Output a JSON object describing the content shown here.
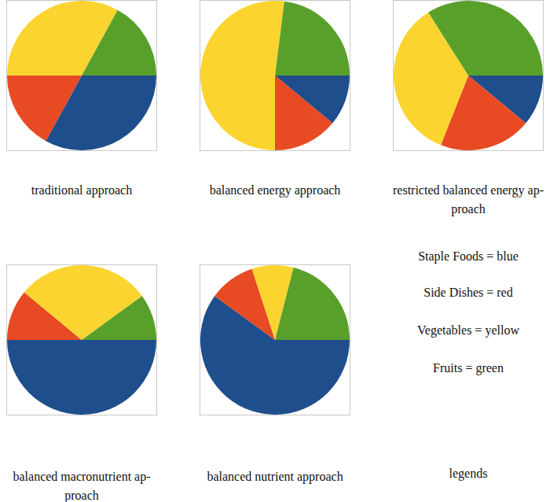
{
  "chart_data": [
    {
      "type": "pie",
      "title": [
        "traditional approach"
      ],
      "categories": [
        "Staple Foods",
        "Side Dishes",
        "Vegetables",
        "Fruits"
      ],
      "values": [
        33,
        17,
        33,
        17
      ],
      "colors": [
        "#1f4e8c",
        "#e84a24",
        "#fcd42f",
        "#59a02b"
      ]
    },
    {
      "type": "pie",
      "title": [
        "balanced energy approach"
      ],
      "categories": [
        "Staple Foods",
        "Side Dishes",
        "Vegetables",
        "Fruits"
      ],
      "values": [
        11,
        14,
        52,
        23
      ],
      "colors": [
        "#1f4e8c",
        "#e84a24",
        "#fcd42f",
        "#59a02b"
      ]
    },
    {
      "type": "pie",
      "title": [
        "restricted balanced energy ap-",
        "proach"
      ],
      "categories": [
        "Staple Foods",
        "Side Dishes",
        "Vegetables",
        "Fruits"
      ],
      "values": [
        11,
        20,
        35,
        34
      ],
      "colors": [
        "#1f4e8c",
        "#e84a24",
        "#fcd42f",
        "#59a02b"
      ]
    },
    {
      "type": "pie",
      "title": [
        "balanced macronutrient ap-",
        "proach"
      ],
      "categories": [
        "Staple Foods",
        "Side Dishes",
        "Vegetables",
        "Fruits"
      ],
      "values": [
        50,
        11,
        29,
        10
      ],
      "colors": [
        "#1f4e8c",
        "#e84a24",
        "#fcd42f",
        "#59a02b"
      ]
    },
    {
      "type": "pie",
      "title": [
        "balanced nutrient approach"
      ],
      "categories": [
        "Staple Foods",
        "Side Dishes",
        "Vegetables",
        "Fruits"
      ],
      "values": [
        60,
        10,
        9,
        21
      ],
      "colors": [
        "#1f4e8c",
        "#e84a24",
        "#fcd42f",
        "#59a02b"
      ]
    }
  ],
  "legend_panel": {
    "items": [
      "Staple Foods = blue",
      "Side Dishes = red",
      "Vegetables = yellow",
      "Fruits = green"
    ],
    "caption": "legends"
  }
}
